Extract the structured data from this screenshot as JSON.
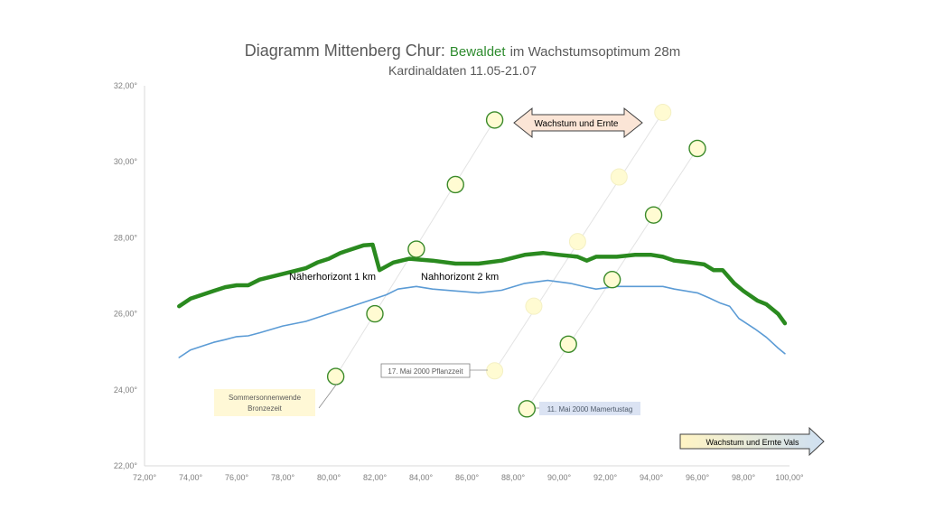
{
  "title_main": "Diagramm Mittenberg Chur:",
  "title_green": "Bewaldet",
  "title_rest": "im Wachstumsoptimum 28m",
  "subtitle": "Kardinaldaten 11.05-21.07",
  "colors": {
    "near_horizon": "#2a8a1f",
    "far_horizon": "#5b9bd5",
    "circle_fill": "#fffbd2",
    "circle_green_stroke": "#3a8a2a",
    "axis": "#d9d9d9",
    "tick_text": "#7f7f7f"
  },
  "chart_data": {
    "type": "line",
    "xlim": [
      72,
      100
    ],
    "ylim": [
      22,
      32
    ],
    "x_ticks": [
      "72,00°",
      "74,00°",
      "76,00°",
      "78,00°",
      "80,00°",
      "82,00°",
      "84,00°",
      "86,00°",
      "88,00°",
      "90,00°",
      "92,00°",
      "94,00°",
      "96,00°",
      "98,00°",
      "100,00°"
    ],
    "x_tick_values": [
      72,
      74,
      76,
      78,
      80,
      82,
      84,
      86,
      88,
      90,
      92,
      94,
      96,
      98,
      100
    ],
    "y_ticks": [
      "22,00°",
      "24,00°",
      "26,00°",
      "28,00°",
      "30,00°",
      "32,00°"
    ],
    "y_tick_values": [
      22,
      24,
      26,
      28,
      30,
      32
    ],
    "series": [
      {
        "name": "Näherhorizont 1 km",
        "points": [
          [
            73.5,
            26.2
          ],
          [
            74,
            26.4
          ],
          [
            74.5,
            26.5
          ],
          [
            75,
            26.6
          ],
          [
            75.5,
            26.7
          ],
          [
            76,
            26.75
          ],
          [
            76.5,
            26.75
          ],
          [
            77,
            26.9
          ],
          [
            78,
            27.05
          ],
          [
            79,
            27.2
          ],
          [
            79.5,
            27.35
          ],
          [
            80,
            27.45
          ],
          [
            80.5,
            27.6
          ],
          [
            81,
            27.7
          ],
          [
            81.5,
            27.8
          ],
          [
            81.9,
            27.82
          ],
          [
            82.2,
            27.15
          ],
          [
            82.8,
            27.35
          ],
          [
            83.5,
            27.45
          ],
          [
            84.5,
            27.4
          ],
          [
            85.5,
            27.32
          ],
          [
            86.5,
            27.32
          ],
          [
            87.5,
            27.4
          ],
          [
            88.5,
            27.55
          ],
          [
            89.3,
            27.6
          ],
          [
            90,
            27.55
          ],
          [
            90.8,
            27.5
          ],
          [
            91.2,
            27.4
          ],
          [
            91.6,
            27.5
          ],
          [
            92.5,
            27.5
          ],
          [
            93.3,
            27.55
          ],
          [
            94,
            27.55
          ],
          [
            94.5,
            27.5
          ],
          [
            95,
            27.4
          ],
          [
            95.7,
            27.35
          ],
          [
            96.3,
            27.3
          ],
          [
            96.7,
            27.15
          ],
          [
            97.1,
            27.15
          ],
          [
            97.6,
            26.8
          ],
          [
            98,
            26.6
          ],
          [
            98.6,
            26.35
          ],
          [
            99,
            26.25
          ],
          [
            99.5,
            26.0
          ],
          [
            99.8,
            25.75
          ]
        ]
      },
      {
        "name": "Nahhorizont 2 km",
        "points": [
          [
            73.5,
            24.85
          ],
          [
            74,
            25.05
          ],
          [
            75,
            25.25
          ],
          [
            75.5,
            25.32
          ],
          [
            76,
            25.4
          ],
          [
            76.5,
            25.42
          ],
          [
            77,
            25.5
          ],
          [
            78,
            25.68
          ],
          [
            79,
            25.8
          ],
          [
            80,
            26.0
          ],
          [
            81,
            26.2
          ],
          [
            81.5,
            26.3
          ],
          [
            82,
            26.4
          ],
          [
            82.5,
            26.5
          ],
          [
            83,
            26.65
          ],
          [
            83.8,
            26.72
          ],
          [
            84.5,
            26.65
          ],
          [
            85.5,
            26.6
          ],
          [
            86.5,
            26.55
          ],
          [
            87.5,
            26.62
          ],
          [
            88.5,
            26.8
          ],
          [
            89.5,
            26.88
          ],
          [
            90.5,
            26.8
          ],
          [
            91.2,
            26.7
          ],
          [
            91.6,
            26.65
          ],
          [
            92.5,
            26.72
          ],
          [
            93.5,
            26.72
          ],
          [
            94.5,
            26.72
          ],
          [
            95,
            26.65
          ],
          [
            96,
            26.55
          ],
          [
            96.5,
            26.42
          ],
          [
            97,
            26.28
          ],
          [
            97.4,
            26.2
          ],
          [
            97.8,
            25.88
          ],
          [
            98.5,
            25.6
          ],
          [
            99,
            25.38
          ],
          [
            99.5,
            25.1
          ],
          [
            99.8,
            24.95
          ]
        ]
      }
    ],
    "circles": [
      {
        "x": 80.3,
        "y": 24.35,
        "style": "green"
      },
      {
        "x": 82.0,
        "y": 26.0,
        "style": "green"
      },
      {
        "x": 83.8,
        "y": 27.7,
        "style": "green"
      },
      {
        "x": 85.5,
        "y": 29.4,
        "style": "green"
      },
      {
        "x": 87.2,
        "y": 31.1,
        "style": "green"
      },
      {
        "x": 87.2,
        "y": 24.5,
        "style": "pale"
      },
      {
        "x": 88.9,
        "y": 26.2,
        "style": "pale"
      },
      {
        "x": 90.8,
        "y": 27.9,
        "style": "pale"
      },
      {
        "x": 92.6,
        "y": 29.6,
        "style": "pale"
      },
      {
        "x": 94.5,
        "y": 31.3,
        "style": "pale"
      },
      {
        "x": 88.6,
        "y": 23.5,
        "style": "green"
      },
      {
        "x": 90.4,
        "y": 25.2,
        "style": "green"
      },
      {
        "x": 92.3,
        "y": 26.9,
        "style": "green"
      },
      {
        "x": 94.1,
        "y": 28.6,
        "style": "green"
      },
      {
        "x": 96.0,
        "y": 30.35,
        "style": "green"
      }
    ],
    "guide_lines": [
      [
        [
          80.3,
          24.35
        ],
        [
          87.2,
          31.1
        ]
      ],
      [
        [
          87.2,
          24.5
        ],
        [
          94.5,
          31.3
        ]
      ],
      [
        [
          88.6,
          23.5
        ],
        [
          96.0,
          30.35
        ]
      ]
    ],
    "annotations": {
      "near_label": "Näherhorizont 1 km",
      "far_label": "Nahhorizont 2 km",
      "solstice_line1": "Sommersonnenwende",
      "solstice_line2": "Bronzezeit",
      "planting": "17. Mai 2000 Pflanzzeit",
      "mamertus": "11. Mai 2000 Mamertustag",
      "double_arrow": "Wachstum und Ernte",
      "right_arrow": "Wachstum und Ernte  Vals"
    }
  }
}
